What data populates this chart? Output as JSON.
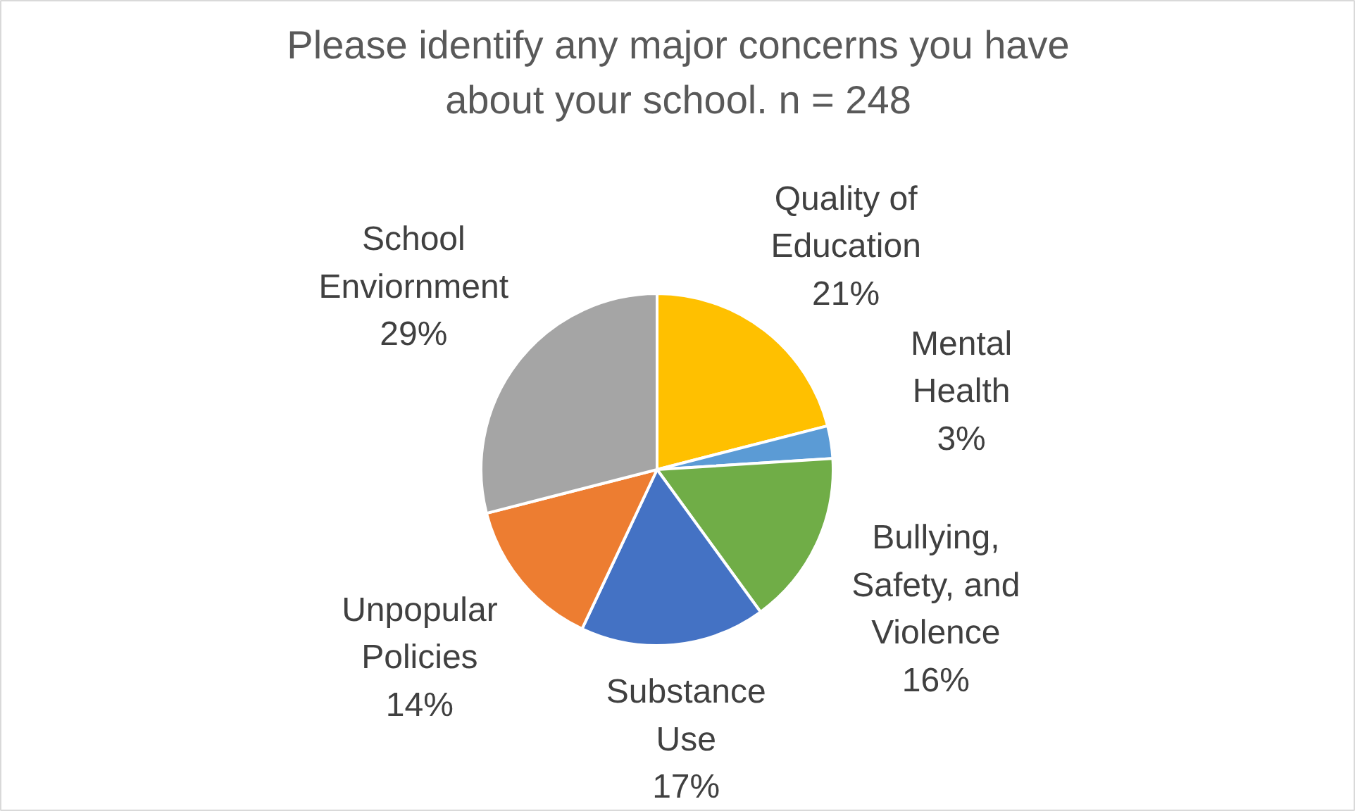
{
  "chart_data": {
    "type": "pie",
    "title": "Please identify any major concerns you have about your school. n = 248",
    "categories": [
      "Quality of Education",
      "Mental Health",
      "Bullying, Safety, and Violence",
      "Substance Use",
      "Unpopular Policies",
      "School Enviornment"
    ],
    "values": [
      21,
      3,
      16,
      17,
      14,
      29
    ],
    "colors": [
      "#ffc000",
      "#5b9bd5",
      "#70ad47",
      "#4472c4",
      "#ed7d31",
      "#a5a5a5"
    ],
    "value_labels": [
      "21%",
      "3%",
      "16%",
      "17%",
      "14%",
      "29%"
    ]
  }
}
